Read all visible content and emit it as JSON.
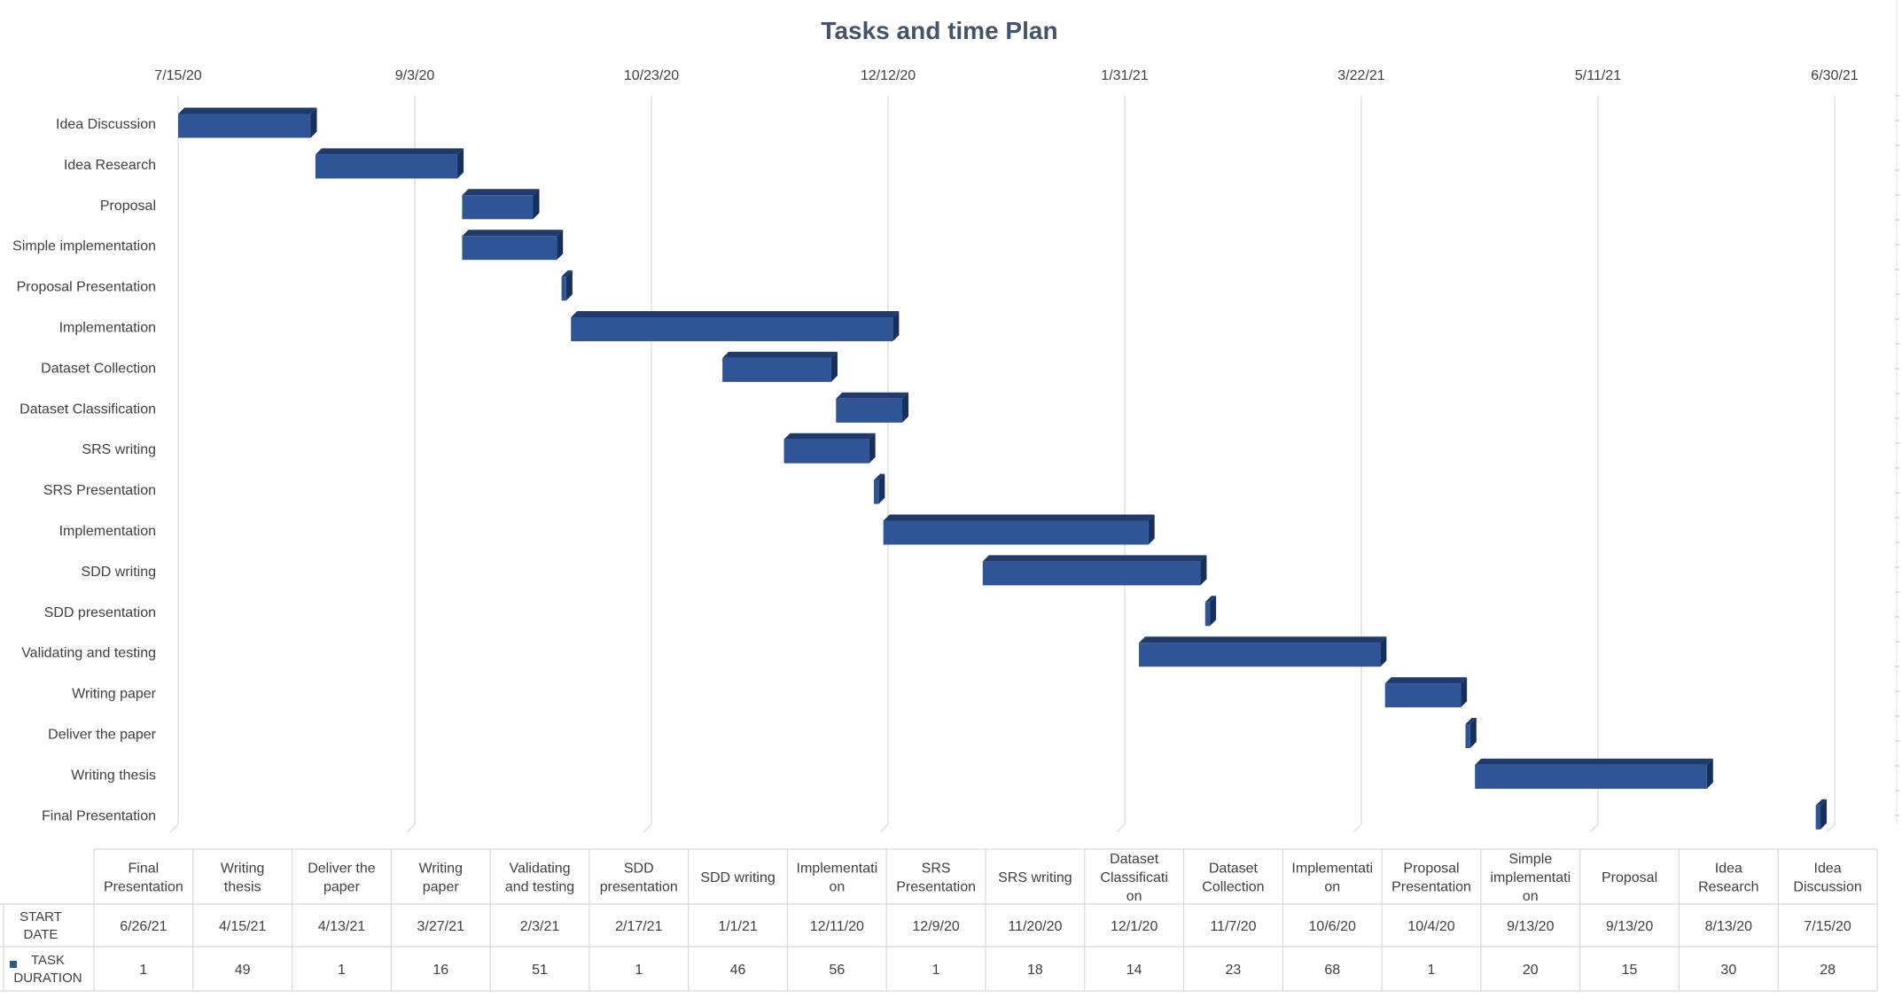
{
  "chart_data": {
    "type": "bar",
    "orientation": "horizontal",
    "style": "3d",
    "title": "Tasks and time Plan",
    "x_tick_labels": [
      "7/15/20",
      "9/3/20",
      "10/23/20",
      "12/12/20",
      "1/31/21",
      "3/22/21",
      "5/11/21",
      "6/30/21"
    ],
    "x_ticks": [
      "2020-07-15",
      "2020-09-03",
      "2020-10-23",
      "2020-12-12",
      "2021-01-31",
      "2021-03-22",
      "2021-05-11",
      "2021-06-30"
    ],
    "xlim": [
      "2020-07-15",
      "2021-06-30"
    ],
    "grid": true,
    "bar_color": "#2F5597",
    "tasks": [
      {
        "name": "Idea Discussion",
        "start": "2020-07-15",
        "duration": 28
      },
      {
        "name": "Idea Research",
        "start": "2020-08-13",
        "duration": 30
      },
      {
        "name": "Proposal",
        "start": "2020-09-13",
        "duration": 15
      },
      {
        "name": "Simple implementation",
        "start": "2020-09-13",
        "duration": 20
      },
      {
        "name": "Proposal Presentation",
        "start": "2020-10-04",
        "duration": 1
      },
      {
        "name": "Implementation",
        "start": "2020-10-06",
        "duration": 68
      },
      {
        "name": "Dataset Collection",
        "start": "2020-11-07",
        "duration": 23
      },
      {
        "name": "Dataset Classification",
        "start": "2020-12-01",
        "duration": 14
      },
      {
        "name": "SRS writing",
        "start": "2020-11-20",
        "duration": 18
      },
      {
        "name": "SRS Presentation",
        "start": "2020-12-09",
        "duration": 1
      },
      {
        "name": "Implementation",
        "start": "2020-12-11",
        "duration": 56
      },
      {
        "name": "SDD writing",
        "start": "2021-01-01",
        "duration": 46
      },
      {
        "name": "SDD presentation",
        "start": "2021-02-17",
        "duration": 1
      },
      {
        "name": "Validating and testing",
        "start": "2021-02-03",
        "duration": 51
      },
      {
        "name": "Writing paper",
        "start": "2021-03-27",
        "duration": 16
      },
      {
        "name": "Deliver the paper",
        "start": "2021-04-13",
        "duration": 1
      },
      {
        "name": "Writing thesis",
        "start": "2021-04-15",
        "duration": 49
      },
      {
        "name": "Final Presentation",
        "start": "2021-06-26",
        "duration": 1
      }
    ],
    "data_table": {
      "columns": [
        "Final Presentation",
        "Writing thesis",
        "Deliver the paper",
        "Writing paper",
        "Validating and testing",
        "SDD presentation",
        "SDD writing",
        "Implementation",
        "SRS Presentation",
        "SRS writing",
        "Dataset Classification",
        "Dataset Collection",
        "Implementation",
        "Proposal Presentation",
        "Simple implementation",
        "Proposal",
        "Idea Research",
        "Idea Discussion"
      ],
      "rows": [
        {
          "label": "START DATE",
          "legend_marker": false,
          "values": [
            "6/26/21",
            "4/15/21",
            "4/13/21",
            "3/27/21",
            "2/3/21",
            "2/17/21",
            "1/1/21",
            "12/11/20",
            "12/9/20",
            "11/20/20",
            "12/1/20",
            "11/7/20",
            "10/6/20",
            "10/4/20",
            "9/13/20",
            "9/13/20",
            "8/13/20",
            "7/15/20"
          ]
        },
        {
          "label": "TASK DURATION",
          "legend_marker": true,
          "values": [
            "1",
            "49",
            "1",
            "16",
            "51",
            "1",
            "46",
            "56",
            "1",
            "18",
            "14",
            "23",
            "68",
            "1",
            "20",
            "15",
            "30",
            "28"
          ]
        }
      ]
    }
  }
}
